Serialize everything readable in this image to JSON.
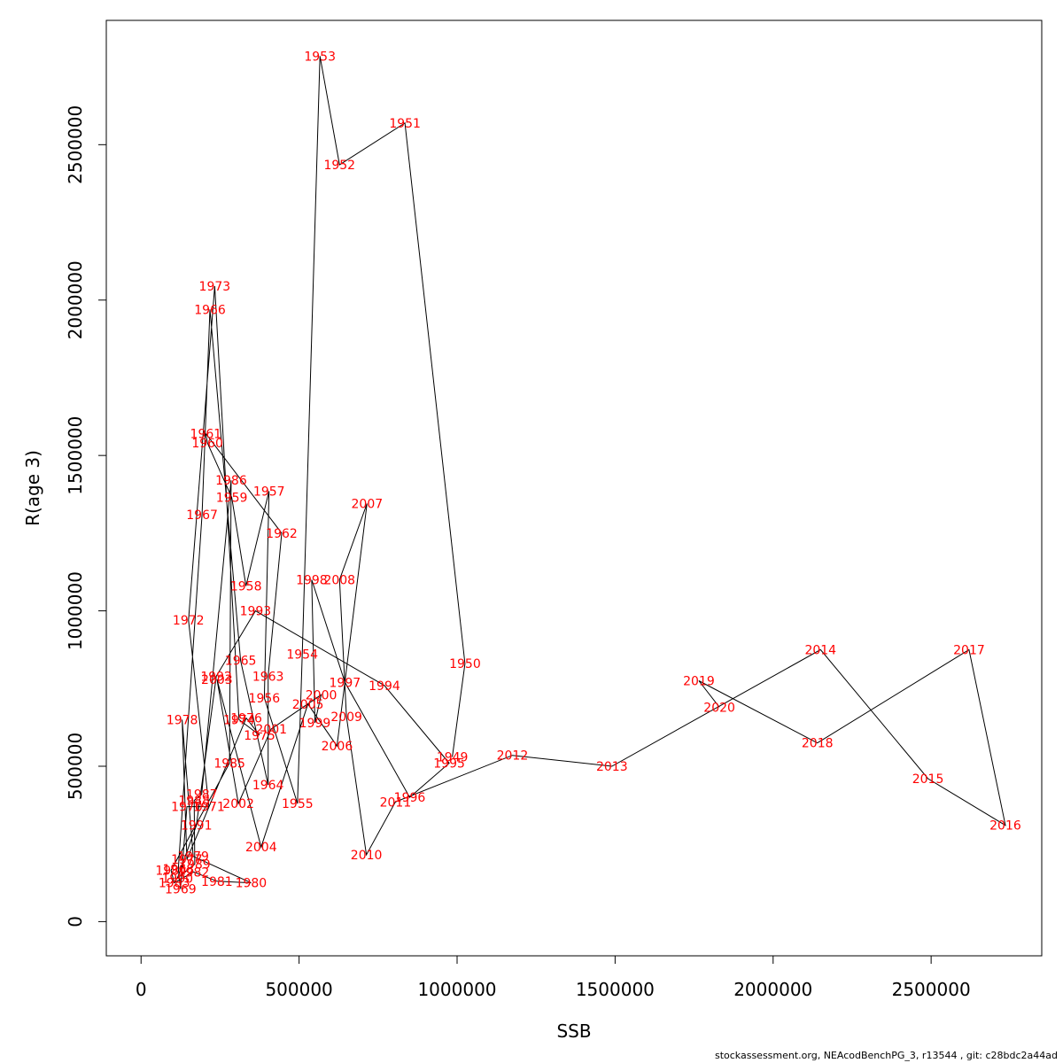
{
  "footer": "stockassessment.org, NEAcodBenchPG_3, r13544 , git: c28bdc2a44ad",
  "chart_data": {
    "type": "line",
    "xlabel": "SSB",
    "ylabel": "R(age 3)",
    "xlim": [
      -110000,
      2850000
    ],
    "ylim": [
      -110000,
      2900000
    ],
    "xticks": [
      0,
      500000,
      1000000,
      1500000,
      2000000,
      2500000
    ],
    "yticks": [
      0,
      500000,
      1000000,
      1500000,
      2000000,
      2500000
    ],
    "grid": false,
    "label_color": "#ff0000",
    "line_color": "#000000",
    "points": [
      {
        "label": "1949",
        "x": 985000,
        "y": 530000
      },
      {
        "label": "1950",
        "x": 1025000,
        "y": 830000
      },
      {
        "label": "1951",
        "x": 835000,
        "y": 2570000
      },
      {
        "label": "1952",
        "x": 628000,
        "y": 2435000
      },
      {
        "label": "1953",
        "x": 566000,
        "y": 2785000
      },
      {
        "label": "1954",
        "x": 510000,
        "y": 860000
      },
      {
        "label": "1955",
        "x": 495000,
        "y": 380000
      },
      {
        "label": "1956",
        "x": 390000,
        "y": 720000
      },
      {
        "label": "1957",
        "x": 405000,
        "y": 1385000
      },
      {
        "label": "1958",
        "x": 332000,
        "y": 1080000
      },
      {
        "label": "1959",
        "x": 287000,
        "y": 1365000
      },
      {
        "label": "1960",
        "x": 210000,
        "y": 1540000
      },
      {
        "label": "1961",
        "x": 205000,
        "y": 1570000
      },
      {
        "label": "1962",
        "x": 445000,
        "y": 1250000
      },
      {
        "label": "1963",
        "x": 402000,
        "y": 790000
      },
      {
        "label": "1964",
        "x": 402000,
        "y": 440000
      },
      {
        "label": "1965",
        "x": 315000,
        "y": 840000
      },
      {
        "label": "1966",
        "x": 218000,
        "y": 1970000
      },
      {
        "label": "1967",
        "x": 193000,
        "y": 1310000
      },
      {
        "label": "1968",
        "x": 118000,
        "y": 170000
      },
      {
        "label": "1969",
        "x": 125000,
        "y": 105000
      },
      {
        "label": "1970",
        "x": 145000,
        "y": 370000
      },
      {
        "label": "1971",
        "x": 215000,
        "y": 370000
      },
      {
        "label": "1972",
        "x": 150000,
        "y": 970000
      },
      {
        "label": "1973",
        "x": 233000,
        "y": 2045000
      },
      {
        "label": "1974",
        "x": 310000,
        "y": 650000
      },
      {
        "label": "1975",
        "x": 375000,
        "y": 600000
      },
      {
        "label": "1976",
        "x": 333000,
        "y": 655000
      },
      {
        "label": "1977",
        "x": 145000,
        "y": 200000
      },
      {
        "label": "1978",
        "x": 130000,
        "y": 650000
      },
      {
        "label": "1979",
        "x": 165000,
        "y": 210000
      },
      {
        "label": "1980",
        "x": 348000,
        "y": 125000
      },
      {
        "label": "1981",
        "x": 240000,
        "y": 130000
      },
      {
        "label": "1982",
        "x": 166000,
        "y": 160000
      },
      {
        "label": "1983",
        "x": 105000,
        "y": 125000
      },
      {
        "label": "1984",
        "x": 95000,
        "y": 165000
      },
      {
        "label": "1985",
        "x": 280000,
        "y": 510000
      },
      {
        "label": "1986",
        "x": 285000,
        "y": 1420000
      },
      {
        "label": "1987",
        "x": 192000,
        "y": 410000
      },
      {
        "label": "1988",
        "x": 168000,
        "y": 390000
      },
      {
        "label": "1989",
        "x": 170000,
        "y": 185000
      },
      {
        "label": "1990",
        "x": 115000,
        "y": 140000
      },
      {
        "label": "1991",
        "x": 175000,
        "y": 310000
      },
      {
        "label": "1992",
        "x": 238000,
        "y": 790000
      },
      {
        "label": "1993",
        "x": 362000,
        "y": 1000000
      },
      {
        "label": "1994",
        "x": 770000,
        "y": 760000
      },
      {
        "label": "1995",
        "x": 975000,
        "y": 510000
      },
      {
        "label": "1996",
        "x": 850000,
        "y": 400000
      },
      {
        "label": "1997",
        "x": 645000,
        "y": 770000
      },
      {
        "label": "1998",
        "x": 540000,
        "y": 1100000
      },
      {
        "label": "1999",
        "x": 550000,
        "y": 640000
      },
      {
        "label": "2000",
        "x": 570000,
        "y": 730000
      },
      {
        "label": "2001",
        "x": 412000,
        "y": 620000
      },
      {
        "label": "2002",
        "x": 308000,
        "y": 380000
      },
      {
        "label": "2003",
        "x": 240000,
        "y": 780000
      },
      {
        "label": "2004",
        "x": 380000,
        "y": 240000
      },
      {
        "label": "2005",
        "x": 528000,
        "y": 700000
      },
      {
        "label": "2006",
        "x": 620000,
        "y": 565000
      },
      {
        "label": "2007",
        "x": 715000,
        "y": 1345000
      },
      {
        "label": "2008",
        "x": 628000,
        "y": 1100000
      },
      {
        "label": "2009",
        "x": 650000,
        "y": 660000
      },
      {
        "label": "2010",
        "x": 713000,
        "y": 215000
      },
      {
        "label": "2011",
        "x": 805000,
        "y": 385000
      },
      {
        "label": "2012",
        "x": 1175000,
        "y": 535000
      },
      {
        "label": "2013",
        "x": 1490000,
        "y": 500000
      },
      {
        "label": "2014",
        "x": 2150000,
        "y": 875000
      },
      {
        "label": "2015",
        "x": 2490000,
        "y": 460000
      },
      {
        "label": "2016",
        "x": 2735000,
        "y": 310000
      },
      {
        "label": "2017",
        "x": 2620000,
        "y": 875000
      },
      {
        "label": "2018",
        "x": 2140000,
        "y": 575000
      },
      {
        "label": "2019",
        "x": 1765000,
        "y": 775000
      },
      {
        "label": "2020",
        "x": 1830000,
        "y": 690000
      }
    ]
  }
}
